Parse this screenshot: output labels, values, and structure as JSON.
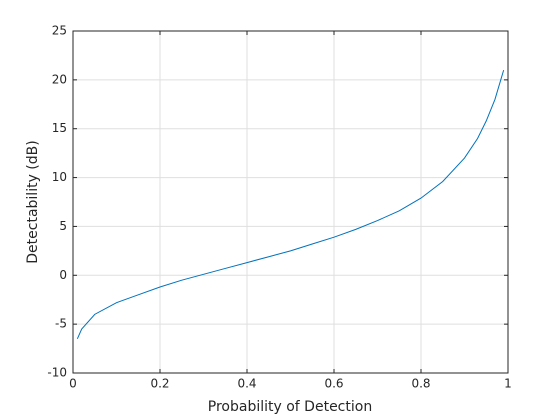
{
  "chart_data": {
    "type": "line",
    "xlabel": "Probability of Detection",
    "ylabel": "Detectability (dB)",
    "x": [
      0.01,
      0.02,
      0.05,
      0.1,
      0.15,
      0.2,
      0.25,
      0.3,
      0.35,
      0.4,
      0.45,
      0.5,
      0.55,
      0.6,
      0.65,
      0.7,
      0.75,
      0.8,
      0.85,
      0.9,
      0.93,
      0.95,
      0.97,
      0.99
    ],
    "series": [
      {
        "color": "#0072bd",
        "values": [
          -6.5,
          -5.5,
          -4.0,
          -2.8,
          -2.0,
          -1.2,
          -0.5,
          0.1,
          0.7,
          1.3,
          1.9,
          2.5,
          3.2,
          3.9,
          4.7,
          5.6,
          6.6,
          7.9,
          9.6,
          12.0,
          14.0,
          15.8,
          18.0,
          21.0
        ]
      }
    ],
    "xlim": [
      0,
      1
    ],
    "xticks": [
      0,
      0.2,
      0.4,
      0.6,
      0.8,
      1
    ],
    "ylim": [
      -10,
      25
    ],
    "yticks": [
      -10,
      -5,
      0,
      5,
      10,
      15,
      20,
      25
    ],
    "grid": true
  }
}
